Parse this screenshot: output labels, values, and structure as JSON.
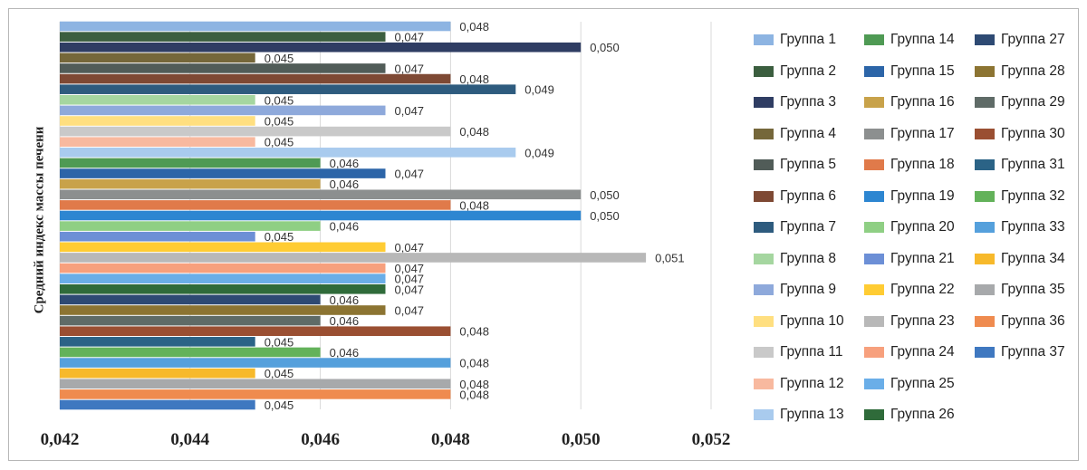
{
  "chart_data": {
    "type": "bar",
    "orientation": "horizontal",
    "title": "",
    "xlabel": "",
    "ylabel": "Средний индекс массы печени",
    "xlim": [
      0.042,
      0.052
    ],
    "xticks": [
      "0,042",
      "0,044",
      "0,046",
      "0,048",
      "0,050",
      "0,052"
    ],
    "grid": true,
    "legend_position": "right",
    "series": [
      {
        "name": "Группа 1",
        "value": 0.048,
        "label": "0,048",
        "color": "#8db4e2"
      },
      {
        "name": "Группа 2",
        "value": 0.047,
        "label": "0,047",
        "color": "#3b5e3f"
      },
      {
        "name": "Группа 3",
        "value": 0.05,
        "label": "0,050",
        "color": "#2f3d63"
      },
      {
        "name": "Группа 4",
        "value": 0.045,
        "label": "0,045",
        "color": "#75673a"
      },
      {
        "name": "Группа 5",
        "value": 0.047,
        "label": "0,047",
        "color": "#515c58"
      },
      {
        "name": "Группа 6",
        "value": 0.048,
        "label": "0,048",
        "color": "#7e4934"
      },
      {
        "name": "Группа 7",
        "value": 0.049,
        "label": "0,049",
        "color": "#2e5b7e"
      },
      {
        "name": "Группа 8",
        "value": 0.045,
        "label": "0,045",
        "color": "#a5d6a0"
      },
      {
        "name": "Группа 9",
        "value": 0.047,
        "label": "0,047",
        "color": "#8ea9db"
      },
      {
        "name": "Группа 10",
        "value": 0.045,
        "label": "0,045",
        "color": "#ffdf80"
      },
      {
        "name": "Группа 11",
        "value": 0.048,
        "label": "0,048",
        "color": "#c9c9c9"
      },
      {
        "name": "Группа 12",
        "value": 0.045,
        "label": "0,045",
        "color": "#f8b99f"
      },
      {
        "name": "Группа 13",
        "value": 0.049,
        "label": "0,049",
        "color": "#a9cbee"
      },
      {
        "name": "Группа 14",
        "value": 0.046,
        "label": "0,046",
        "color": "#4f9a54"
      },
      {
        "name": "Группа 15",
        "value": 0.047,
        "label": "0,047",
        "color": "#2c65a8"
      },
      {
        "name": "Группа 16",
        "value": 0.046,
        "label": "0,046",
        "color": "#c8a24a"
      },
      {
        "name": "Группа 17",
        "value": 0.05,
        "label": "0,050",
        "color": "#8c8f8f"
      },
      {
        "name": "Группа 18",
        "value": 0.048,
        "label": "0,048",
        "color": "#e07a4a"
      },
      {
        "name": "Группа 19",
        "value": 0.05,
        "label": "0,050",
        "color": "#2d86d1"
      },
      {
        "name": "Группа 20",
        "value": 0.046,
        "label": "0,046",
        "color": "#8fcf84"
      },
      {
        "name": "Группа 21",
        "value": 0.045,
        "label": "0,045",
        "color": "#6c8fd6"
      },
      {
        "name": "Группа 22",
        "value": 0.047,
        "label": "0,047",
        "color": "#ffcc33"
      },
      {
        "name": "Группа 23",
        "value": 0.051,
        "label": "0,051",
        "color": "#b8b8b8"
      },
      {
        "name": "Группа 24",
        "value": 0.047,
        "label": "0,047",
        "color": "#f7a07d"
      },
      {
        "name": "Группа 25",
        "value": 0.047,
        "label": "0,047",
        "color": "#6aaee8"
      },
      {
        "name": "Группа 26",
        "value": 0.047,
        "label": "0,047",
        "color": "#2f6b3a"
      },
      {
        "name": "Группа 27",
        "value": 0.046,
        "label": "0,046",
        "color": "#2e4a73"
      },
      {
        "name": "Группа 28",
        "value": 0.047,
        "label": "0,047",
        "color": "#8c7432"
      },
      {
        "name": "Группа 29",
        "value": 0.046,
        "label": "0,046",
        "color": "#5f6b67"
      },
      {
        "name": "Группа 30",
        "value": 0.048,
        "label": "0,048",
        "color": "#9a4f32"
      },
      {
        "name": "Группа 31",
        "value": 0.045,
        "label": "0,045",
        "color": "#2b6386"
      },
      {
        "name": "Группа 32",
        "value": 0.046,
        "label": "0,046",
        "color": "#63b25a"
      },
      {
        "name": "Группа 33",
        "value": 0.048,
        "label": "0,048",
        "color": "#55a0dc"
      },
      {
        "name": "Группа 34",
        "value": 0.045,
        "label": "0,045",
        "color": "#f7b92b"
      },
      {
        "name": "Группа 35",
        "value": 0.048,
        "label": "0,048",
        "color": "#a7a9ab"
      },
      {
        "name": "Группа 36",
        "value": 0.048,
        "label": "0,048",
        "color": "#ef8b4f"
      },
      {
        "name": "Группа 37",
        "value": 0.045,
        "label": "0,045",
        "color": "#3f78c0"
      }
    ]
  }
}
